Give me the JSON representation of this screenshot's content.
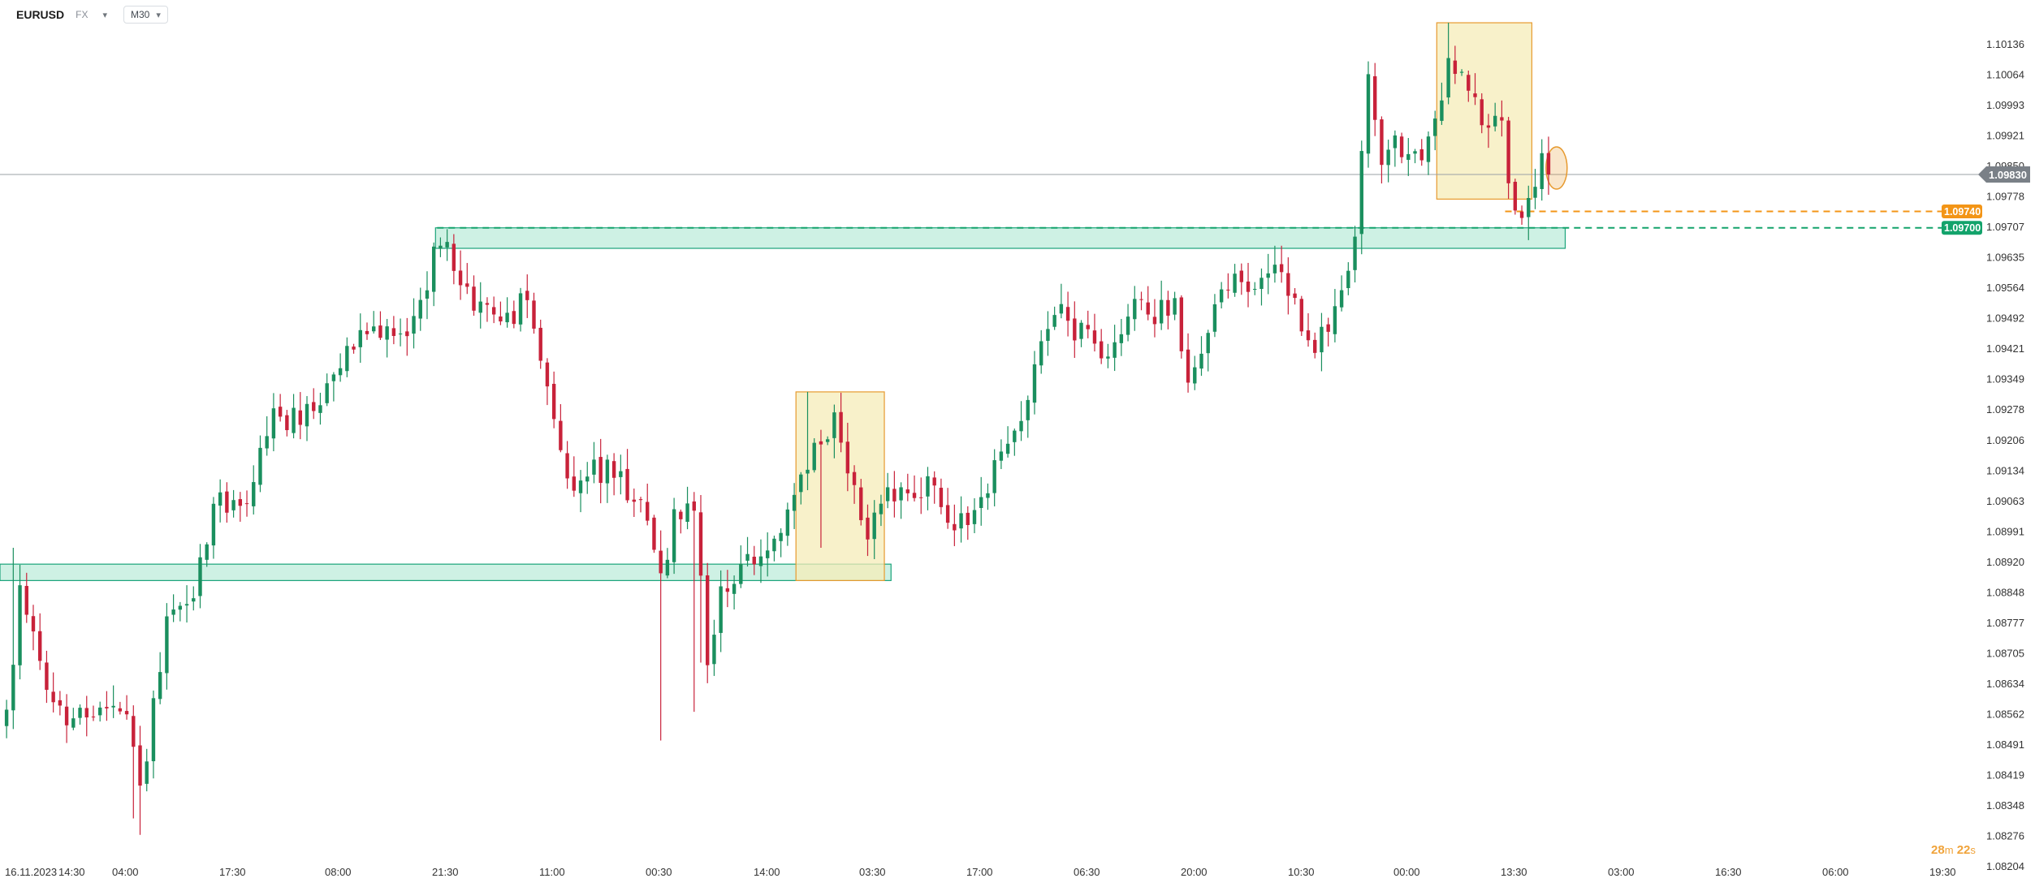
{
  "toolbar": {
    "symbol": "EURUSD",
    "symbol_type": "FX",
    "timeframe": "M30"
  },
  "countdown": {
    "minutes": "28",
    "minutes_unit": "m",
    "seconds": "22",
    "seconds_unit": "s"
  },
  "colors": {
    "bull": "#1a8f5e",
    "bear": "#c8223a",
    "zone_green": "#b4ead6",
    "zone_green_border": "#1aa37a",
    "zone_yellow": "#f5ecb8",
    "zone_yellow_border": "#e79a2f",
    "orange_line": "#f39517",
    "green_line": "#13a36b",
    "price_line": "#9aa0a6",
    "axis_text": "#333333"
  },
  "chart_data": {
    "type": "candlestick",
    "title": "EURUSD",
    "timeframe": "M30",
    "y_range": [
      1.08168,
      1.10208
    ],
    "y_ticks": [
      "1.10136",
      "1.10064",
      "1.09993",
      "1.09921",
      "1.09850",
      "1.09778",
      "1.09707",
      "1.09635",
      "1.09564",
      "1.09492",
      "1.09421",
      "1.09349",
      "1.09278",
      "1.09206",
      "1.09134",
      "1.09063",
      "1.08991",
      "1.08920",
      "1.08848",
      "1.08777",
      "1.08705",
      "1.08634",
      "1.08562",
      "1.08491",
      "1.08419",
      "1.08348",
      "1.08276",
      "1.08204"
    ],
    "x_ticks": [
      "16.11.2023",
      "14:30",
      "04:00",
      "17:30",
      "08:00",
      "21:30",
      "11:00",
      "00:30",
      "14:00",
      "03:30",
      "17:00",
      "06:30",
      "20:00",
      "10:30",
      "00:00",
      "13:30",
      "03:00",
      "16:30",
      "06:00",
      "19:30"
    ],
    "current_price": "1.09830",
    "levels": [
      {
        "label": "1.09740",
        "price": 1.0974,
        "style": "dashed",
        "color": "orange"
      },
      {
        "label": "1.09700",
        "price": 1.097,
        "style": "dashed",
        "color": "green"
      }
    ],
    "zones": [
      {
        "kind": "green",
        "bar_start": 0,
        "bar_end": 132,
        "price_top": 1.0888,
        "price_bottom": 1.0884
      },
      {
        "kind": "green",
        "bar_start": 65,
        "bar_end": 233,
        "price_top": 1.097,
        "price_bottom": 1.0965
      },
      {
        "kind": "yellow",
        "bar_start": 119,
        "bar_end": 131,
        "price_top": 1.093,
        "price_bottom": 1.0884
      },
      {
        "kind": "yellow",
        "bar_start": 215,
        "bar_end": 228,
        "price_top": 1.102,
        "price_bottom": 1.0977
      }
    ],
    "circle_marker": {
      "bar": 231,
      "price": 1.0983
    },
    "candles_note": "OHLC prices per 30-minute bar, in chronological order",
    "anchors": [
      [
        0,
        1.085
      ],
      [
        2,
        1.088
      ],
      [
        4,
        1.0872
      ],
      [
        6,
        1.0856
      ],
      [
        9,
        1.0848
      ],
      [
        12,
        1.0854
      ],
      [
        17,
        1.0852
      ],
      [
        19,
        1.0846
      ],
      [
        20,
        1.0832
      ],
      [
        22,
        1.0854
      ],
      [
        24,
        1.0873
      ],
      [
        28,
        1.0882
      ],
      [
        31,
        1.09
      ],
      [
        34,
        1.0906
      ],
      [
        36,
        1.0903
      ],
      [
        40,
        1.0926
      ],
      [
        44,
        1.0922
      ],
      [
        48,
        1.093
      ],
      [
        52,
        1.0942
      ],
      [
        56,
        1.0946
      ],
      [
        60,
        1.0944
      ],
      [
        64,
        1.0962
      ],
      [
        66,
        1.0965
      ],
      [
        70,
        1.0952
      ],
      [
        74,
        1.0946
      ],
      [
        78,
        1.0954
      ],
      [
        82,
        1.0922
      ],
      [
        84,
        1.0906
      ],
      [
        88,
        1.0912
      ],
      [
        92,
        1.0908
      ],
      [
        96,
        1.0898
      ],
      [
        98,
        1.0886
      ],
      [
        100,
        1.0898
      ],
      [
        103,
        1.0901
      ],
      [
        105,
        1.0866
      ],
      [
        107,
        1.0882
      ],
      [
        110,
        1.0887
      ],
      [
        114,
        1.089
      ],
      [
        118,
        1.0904
      ],
      [
        122,
        1.0918
      ],
      [
        124,
        1.0922
      ],
      [
        126,
        1.091
      ],
      [
        129,
        1.0896
      ],
      [
        131,
        1.0904
      ],
      [
        134,
        1.0905
      ],
      [
        138,
        1.0906
      ],
      [
        142,
        1.0899
      ],
      [
        145,
        1.0898
      ],
      [
        148,
        1.0911
      ],
      [
        152,
        1.092
      ],
      [
        155,
        1.0941
      ],
      [
        158,
        1.0948
      ],
      [
        162,
        1.0944
      ],
      [
        164,
        1.0936
      ],
      [
        166,
        1.0944
      ],
      [
        169,
        1.0954
      ],
      [
        172,
        1.0948
      ],
      [
        175,
        1.0951
      ],
      [
        177,
        1.0933
      ],
      [
        180,
        1.0945
      ],
      [
        183,
        1.0957
      ],
      [
        186,
        1.0954
      ],
      [
        189,
        1.096
      ],
      [
        192,
        1.0955
      ],
      [
        196,
        1.094
      ],
      [
        198,
        1.0946
      ],
      [
        200,
        1.0955
      ],
      [
        202,
        1.097
      ],
      [
        204,
        1.1005
      ],
      [
        206,
        1.0987
      ],
      [
        208,
        1.099
      ],
      [
        212,
        1.0986
      ],
      [
        214,
        1.0994
      ],
      [
        216,
        1.101
      ],
      [
        218,
        1.1008
      ],
      [
        220,
        1.0999
      ],
      [
        224,
        1.0993
      ],
      [
        226,
        1.0975
      ],
      [
        228,
        1.0975
      ],
      [
        230,
        1.0986
      ],
      [
        231,
        1.0983
      ]
    ]
  }
}
